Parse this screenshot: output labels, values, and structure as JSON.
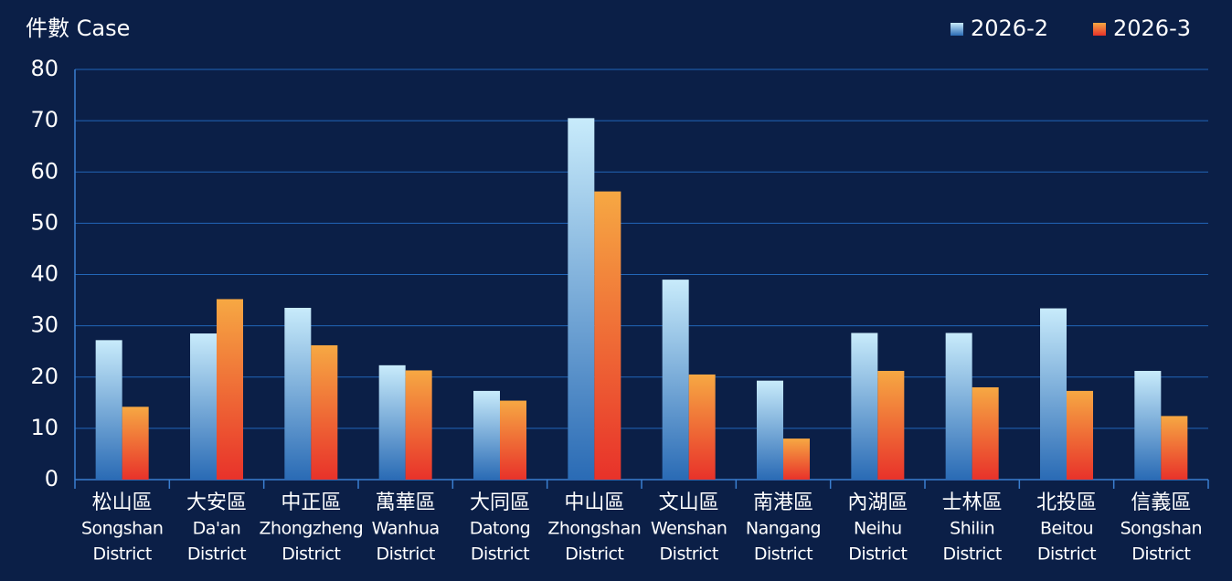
{
  "chart_data": {
    "type": "bar",
    "y_label": "件數 Case",
    "categories": [
      [
        "松山區",
        "Songshan",
        "District"
      ],
      [
        "大安區",
        "Da'an",
        "District"
      ],
      [
        "中正區",
        "Zhongzheng",
        "District"
      ],
      [
        "萬華區",
        "Wanhua",
        "District"
      ],
      [
        "大同區",
        "Datong",
        "District"
      ],
      [
        "中山區",
        "Zhongshan",
        "District"
      ],
      [
        "文山區",
        "Wenshan",
        "District"
      ],
      [
        "南港區",
        "Nangang",
        "District"
      ],
      [
        "內湖區",
        "Neihu",
        "District"
      ],
      [
        "士林區",
        "Shilin",
        "District"
      ],
      [
        "北投區",
        "Beitou",
        "District"
      ],
      [
        "信義區",
        "Songshan",
        "District"
      ]
    ],
    "series": [
      {
        "name": "2026-2",
        "color": "#2a6bb5",
        "values": [
          27.2,
          28.5,
          33.5,
          22.3,
          17.3,
          70.5,
          39.0,
          19.3,
          28.6,
          28.6,
          33.4,
          21.2
        ]
      },
      {
        "name": "2026-3",
        "color": "#e8322a",
        "values": [
          14.2,
          35.2,
          26.2,
          21.3,
          15.4,
          56.2,
          20.5,
          8.0,
          21.2,
          18.0,
          17.3,
          12.4
        ]
      }
    ],
    "ylim": [
      0,
      80
    ],
    "yticks": [
      0,
      10,
      20,
      30,
      40,
      50,
      60,
      70,
      80
    ],
    "grid": true,
    "legend": "top-right"
  }
}
